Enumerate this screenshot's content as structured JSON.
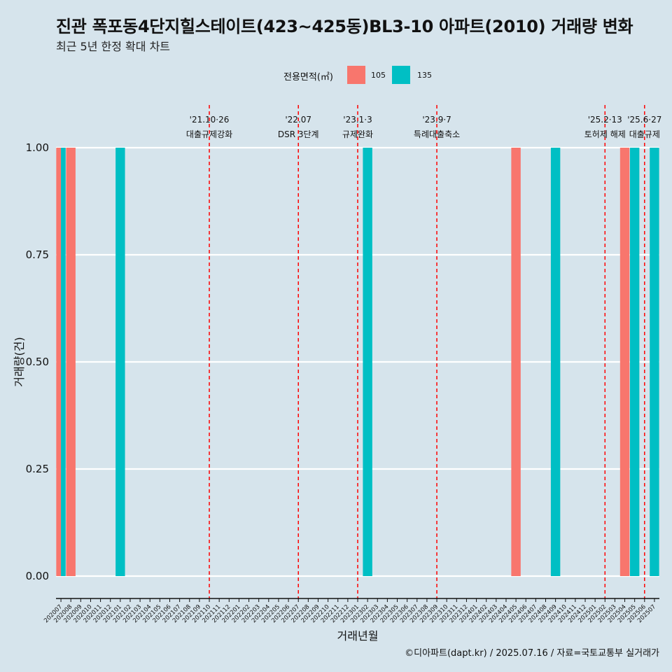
{
  "title": "진관 폭포동4단지힐스테이트(423~425동)BL3-10 아파트(2010) 거래량 변화",
  "subtitle": "최근 5년 한정 확대 차트",
  "caption": "©디아파트(dapt.kr) / 2025.07.16 / 자료=국토교통부 실거래가",
  "legend": {
    "title": "전용면적(㎡)",
    "items": [
      {
        "label": "105",
        "color": "#f8766d"
      },
      {
        "label": "135",
        "color": "#00bfc4"
      }
    ]
  },
  "chart_data": {
    "type": "bar",
    "xlabel": "거래년월",
    "ylabel": "거래량(건)",
    "ylim": [
      0,
      1
    ],
    "yticks": [
      "0.00",
      "0.25",
      "0.50",
      "0.75",
      "1.00"
    ],
    "grid": true,
    "legend_position": "top",
    "categories": [
      "202007",
      "202008",
      "202009",
      "202010",
      "202011",
      "202012",
      "202101",
      "202102",
      "202103",
      "202104",
      "202105",
      "202106",
      "202107",
      "202108",
      "202109",
      "202110",
      "202111",
      "202112",
      "202201",
      "202202",
      "202203",
      "202204",
      "202205",
      "202206",
      "202207",
      "202208",
      "202209",
      "202210",
      "202211",
      "202212",
      "202301",
      "202302",
      "202303",
      "202304",
      "202305",
      "202306",
      "202307",
      "202308",
      "202309",
      "202310",
      "202311",
      "202312",
      "202401",
      "202402",
      "202403",
      "202404",
      "202405",
      "202406",
      "202407",
      "202408",
      "202409",
      "202410",
      "202411",
      "202412",
      "202501",
      "202502",
      "202503",
      "202504",
      "202505",
      "202506",
      "202507"
    ],
    "series": [
      {
        "name": "105",
        "color": "#f8766d",
        "points": [
          {
            "x": "202007",
            "y": 1
          },
          {
            "x": "202008",
            "y": 1
          },
          {
            "x": "202405",
            "y": 1
          },
          {
            "x": "202504",
            "y": 1
          }
        ]
      },
      {
        "name": "135",
        "color": "#00bfc4",
        "points": [
          {
            "x": "202007",
            "y": 1
          },
          {
            "x": "202101",
            "y": 1
          },
          {
            "x": "202302",
            "y": 1
          },
          {
            "x": "202409",
            "y": 1
          },
          {
            "x": "202505",
            "y": 1
          },
          {
            "x": "202507",
            "y": 1
          }
        ]
      }
    ],
    "events": [
      {
        "x": "202110",
        "date": "'21.10·26",
        "label": "대출규제강화"
      },
      {
        "x": "202207",
        "date": "'22.07",
        "label": "DSR 3단계"
      },
      {
        "x": "202301",
        "date": "'23.1·3",
        "label": "규제완화"
      },
      {
        "x": "202309",
        "date": "'23.9·7",
        "label": "특례대출축소"
      },
      {
        "x": "202502",
        "date": "'25.2·13",
        "label": "토허제 해제"
      },
      {
        "x": "202506",
        "date": "'25.6·27",
        "label": "대출규제"
      }
    ],
    "event_line_color": "#ff0000"
  }
}
